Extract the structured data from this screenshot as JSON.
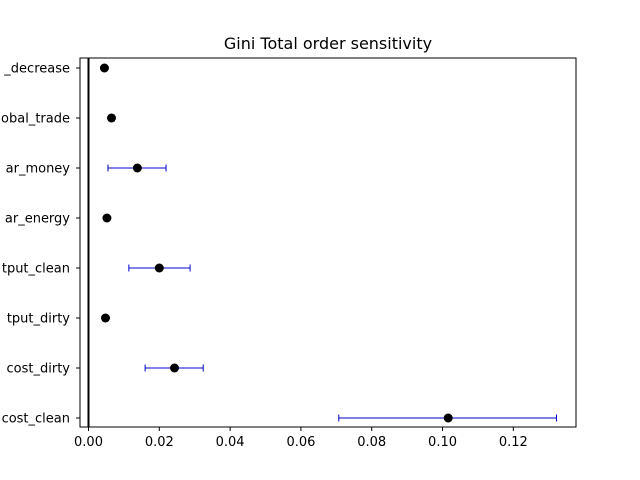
{
  "chart_data": {
    "type": "scatter",
    "title": "Gini Total order sensitivity",
    "xlabel": "",
    "ylabel": "",
    "xlim": [
      -0.0024,
      0.1377
    ],
    "xticks": [
      0.0,
      0.02,
      0.04,
      0.06,
      0.08,
      0.1,
      0.12
    ],
    "xtick_labels": [
      "0.00",
      "0.02",
      "0.04",
      "0.06",
      "0.08",
      "0.10",
      "0.12"
    ],
    "reference_line_x": 0,
    "grid": false,
    "categories": [
      "_decrease",
      "obal_trade",
      "ar_money",
      "ar_energy",
      "tput_clean",
      "tput_dirty",
      "cost_dirty",
      "cost_clean"
    ],
    "points": [
      {
        "label": "_decrease",
        "value": 0.0045,
        "err_low": 0.0045,
        "err_high": 0.0045
      },
      {
        "label": "obal_trade",
        "value": 0.0065,
        "err_low": 0.0058,
        "err_high": 0.0073
      },
      {
        "label": "ar_money",
        "value": 0.0138,
        "err_low": 0.0055,
        "err_high": 0.0219
      },
      {
        "label": "ar_energy",
        "value": 0.0052,
        "err_low": 0.0052,
        "err_high": 0.0052
      },
      {
        "label": "tput_clean",
        "value": 0.02,
        "err_low": 0.0114,
        "err_high": 0.0287
      },
      {
        "label": "tput_dirty",
        "value": 0.0048,
        "err_low": 0.0048,
        "err_high": 0.0048
      },
      {
        "label": "cost_dirty",
        "value": 0.0243,
        "err_low": 0.016,
        "err_high": 0.0324
      },
      {
        "label": "cost_clean",
        "value": 0.1016,
        "err_low": 0.0707,
        "err_high": 0.1322
      }
    ],
    "colors": {
      "point": "#000000",
      "errorbar": "#0000cc",
      "refline": "#000000"
    }
  }
}
